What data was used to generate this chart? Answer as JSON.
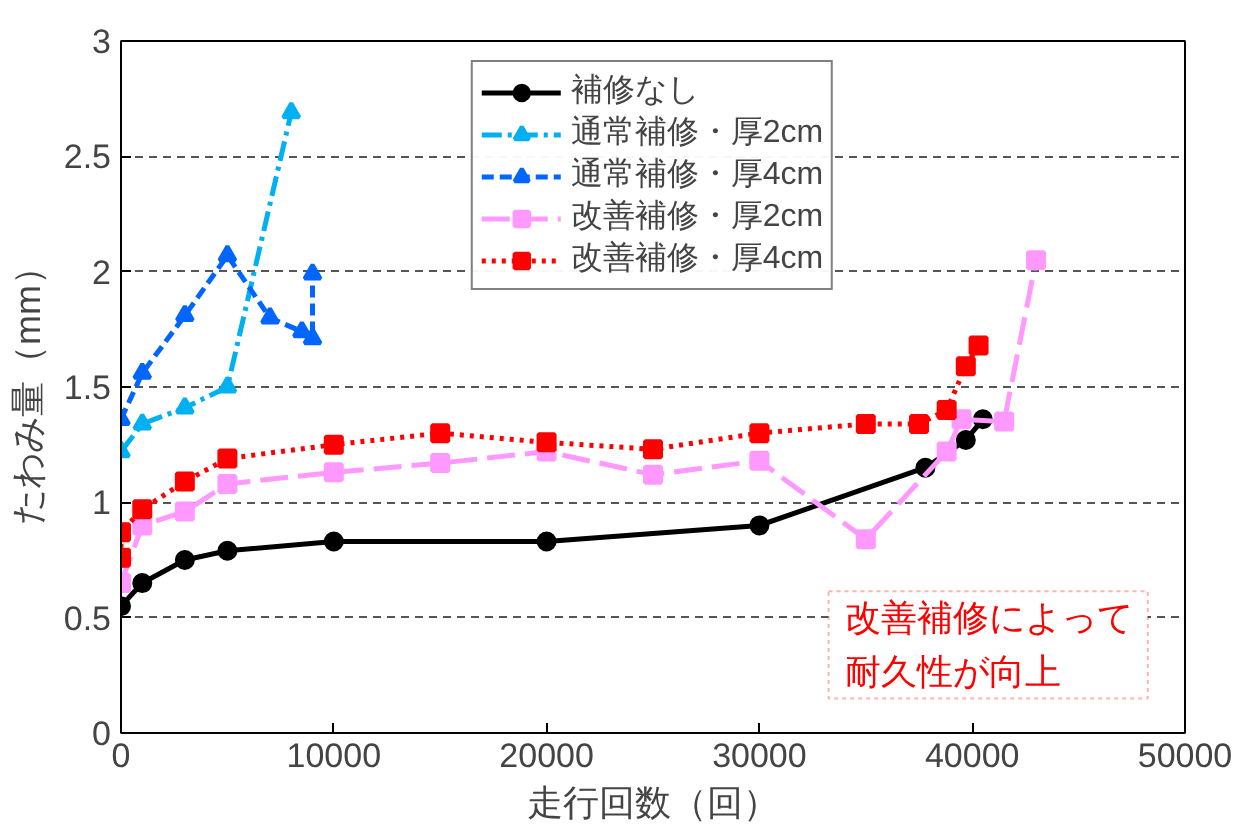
{
  "chart_data": {
    "type": "line",
    "xlabel": "走行回数（回）",
    "ylabel": "たわみ量（mm）",
    "xlim": [
      0,
      50000
    ],
    "xticks": [
      0,
      10000,
      20000,
      30000,
      40000,
      50000
    ],
    "ylim": [
      0,
      3
    ],
    "yticks": [
      0,
      0.5,
      1,
      1.5,
      2,
      2.5,
      3
    ],
    "grid": "y",
    "legend": "top",
    "annotations": [
      "改善補修によって",
      "耐久性が向上"
    ],
    "series": [
      {
        "name": "補修なし",
        "color": "#000000",
        "marker": "circle",
        "line_style": "solid",
        "x": [
          0,
          1000,
          3000,
          5000,
          10000,
          20000,
          30000,
          37800,
          39700,
          40500
        ],
        "values": [
          0.55,
          0.65,
          0.75,
          0.79,
          0.83,
          0.83,
          0.9,
          1.15,
          1.27,
          1.36
        ]
      },
      {
        "name": "通常補修・厚2cm",
        "color": "#00b0f0",
        "marker": "triangle",
        "line_style": "dashdot",
        "x": [
          0,
          1000,
          3000,
          5000,
          8000
        ],
        "values": [
          1.22,
          1.34,
          1.41,
          1.5,
          2.69
        ]
      },
      {
        "name": "通常補修・厚4cm",
        "color": "#0066ff",
        "marker": "triangle",
        "line_style": "dashed",
        "x": [
          0,
          1000,
          3000,
          5000,
          7000,
          8500,
          9000,
          9000
        ],
        "values": [
          1.36,
          1.56,
          1.81,
          2.07,
          1.8,
          1.74,
          1.71,
          1.99
        ]
      },
      {
        "name": "改善補修・厚2cm",
        "color": "#ff99ff",
        "marker": "square",
        "line_style": "longdash",
        "x": [
          0,
          1000,
          3000,
          5000,
          10000,
          15000,
          20000,
          25000,
          30000,
          35000,
          38800,
          39500,
          41500,
          43000
        ],
        "values": [
          0.65,
          0.9,
          0.96,
          1.08,
          1.13,
          1.17,
          1.22,
          1.12,
          1.18,
          0.84,
          1.22,
          1.36,
          1.35,
          2.05
        ]
      },
      {
        "name": "改善補修・厚4cm",
        "color": "#ff0000",
        "marker": "square",
        "line_style": "dotted",
        "x": [
          0,
          0,
          1000,
          3000,
          5000,
          10000,
          15000,
          20000,
          25000,
          30000,
          35000,
          37500,
          38800,
          39700,
          40300
        ],
        "values": [
          0.76,
          0.87,
          0.97,
          1.09,
          1.19,
          1.25,
          1.3,
          1.26,
          1.23,
          1.3,
          1.34,
          1.34,
          1.4,
          1.59,
          1.68
        ]
      }
    ]
  }
}
